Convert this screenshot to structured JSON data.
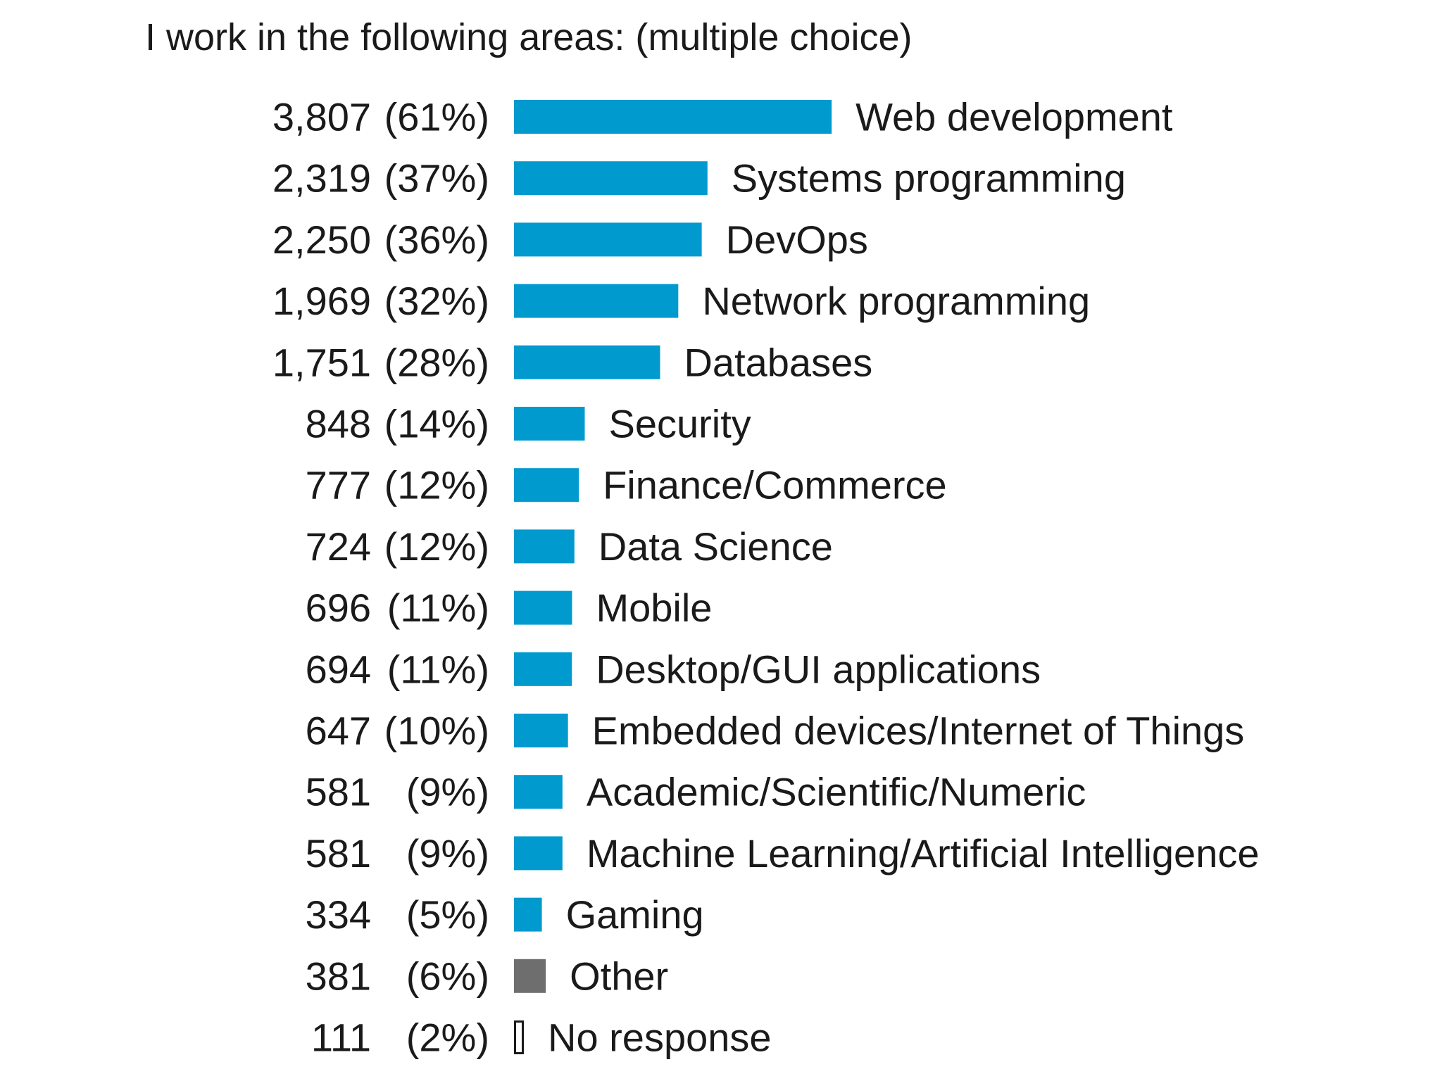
{
  "colors": {
    "bar": "#009ACF",
    "other": "#6E6E6E",
    "no_response": "#FFFFFF",
    "no_response_stroke": "#1A1A1A",
    "text": "#1A1A1A"
  },
  "chart_data": {
    "type": "bar",
    "orientation": "horizontal",
    "title": "I work in the following areas: (multiple choice)",
    "xlabel": "",
    "ylabel": "",
    "grid": false,
    "legend": "none",
    "categories": [
      "Web development",
      "Systems programming",
      "DevOps",
      "Network programming",
      "Databases",
      "Security",
      "Finance/Commerce",
      "Data Science",
      "Mobile",
      "Desktop/GUI applications",
      "Embedded devices/Internet of Things",
      "Academic/Scientific/Numeric",
      "Machine Learning/Artificial Intelligence",
      "Gaming",
      "Other",
      "No response"
    ],
    "counts": [
      3807,
      2319,
      2250,
      1969,
      1751,
      848,
      777,
      724,
      696,
      694,
      647,
      581,
      581,
      334,
      381,
      111
    ],
    "count_labels": [
      "3,807",
      "2,319",
      "2,250",
      "1,969",
      "1,751",
      "848",
      "777",
      "724",
      "696",
      "694",
      "647",
      "581",
      "581",
      "334",
      "381",
      "111"
    ],
    "percent_labels": [
      "(61%)",
      "(37%)",
      "(36%)",
      "(32%)",
      "(28%)",
      "(14%)",
      "(12%)",
      "(12%)",
      "(11%)",
      "(11%)",
      "(10%)",
      "(9%)",
      "(9%)",
      "(5%)",
      "(6%)",
      "(2%)"
    ],
    "bar_styles": [
      "primary",
      "primary",
      "primary",
      "primary",
      "primary",
      "primary",
      "primary",
      "primary",
      "primary",
      "primary",
      "primary",
      "primary",
      "primary",
      "primary",
      "other",
      "no_response"
    ]
  }
}
